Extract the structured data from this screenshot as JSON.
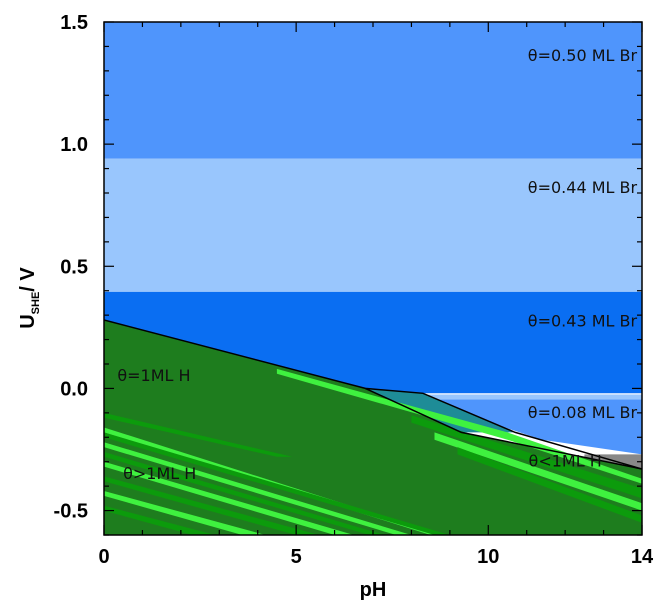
{
  "chart_data": {
    "type": "area",
    "title": "",
    "xlabel": "pH",
    "ylabel_main": "U",
    "ylabel_sub": "SHE",
    "ylabel_rest": "/ V",
    "xlim": [
      0,
      14
    ],
    "ylim": [
      -0.6,
      1.5
    ],
    "x_ticks": [
      0,
      5,
      10,
      14
    ],
    "y_ticks": [
      1.5,
      1.0,
      0.5,
      0.0,
      -0.5
    ],
    "x_ticks_labels": [
      "0",
      "5",
      "10",
      "14"
    ],
    "y_ticks_labels": [
      "1.5",
      "1.0",
      "0.5",
      "0.0",
      "-0.5"
    ],
    "grid": false,
    "regions": [
      {
        "label": "θ=0.50 ML Br",
        "color": "#4f95fc",
        "polygon": [
          [
            0,
            0.94
          ],
          [
            14,
            0.94
          ],
          [
            14,
            1.5
          ],
          [
            0,
            1.5
          ]
        ],
        "label_at": [
          12.45,
          1.36
        ]
      },
      {
        "label": "θ=0.44 ML Br",
        "color": "#99c6fd",
        "polygon": [
          [
            0,
            0.395
          ],
          [
            14,
            0.395
          ],
          [
            14,
            0.94
          ],
          [
            0,
            0.94
          ]
        ],
        "label_at": [
          12.45,
          0.82
        ]
      },
      {
        "label": "θ=0.43 ML Br",
        "color": "#0a6ef2",
        "polygon": [
          [
            0,
            -0.02
          ],
          [
            14,
            -0.02
          ],
          [
            14,
            0.395
          ],
          [
            0,
            0.395
          ]
        ],
        "label_at": [
          12.45,
          0.275
        ]
      },
      {
        "label": "θ=0.08 ML Br",
        "color": "#4f95fc",
        "polygon": [
          [
            8.2,
            -0.045
          ],
          [
            14,
            -0.045
          ],
          [
            14,
            -0.27
          ],
          [
            11.4,
            -0.21
          ]
        ],
        "label_at": [
          12.45,
          -0.1
        ]
      },
      {
        "label": "",
        "color": "#99c6fd",
        "polygon": [
          [
            8.2,
            -0.025
          ],
          [
            14,
            -0.025
          ],
          [
            14,
            -0.045
          ],
          [
            8.2,
            -0.045
          ]
        ],
        "label_at": null
      },
      {
        "label": "",
        "color": "#888888",
        "polygon": [
          [
            12.5,
            -0.27
          ],
          [
            14,
            -0.27
          ],
          [
            14,
            -0.33
          ],
          [
            12.5,
            -0.3
          ]
        ],
        "label_at": null
      },
      {
        "label": "",
        "color": "#1e8c97",
        "polygon": [
          [
            6.8,
            0.0
          ],
          [
            8.3,
            -0.02
          ],
          [
            10.7,
            -0.18
          ],
          [
            9.3,
            -0.18
          ]
        ],
        "label_at": null
      },
      {
        "label": "θ=1ML H",
        "color": "#1e7d1e",
        "polygon": [
          [
            0,
            0.28
          ],
          [
            6.8,
            0.0
          ],
          [
            9.3,
            -0.18
          ],
          [
            14,
            -0.33
          ],
          [
            14,
            -0.6
          ],
          [
            0,
            -0.6
          ]
        ],
        "label_at": [
          1.3,
          0.05
        ]
      },
      {
        "label": "θ>1ML H",
        "color": "#1e7d1e",
        "polygon": [],
        "label_at": [
          1.45,
          -0.35
        ]
      },
      {
        "label": "θ<1ML H",
        "color": "#1e7d1e",
        "polygon": [],
        "label_at": [
          12.0,
          -0.3
        ]
      }
    ],
    "stripes": [
      {
        "color": "#0c9b0c",
        "polygon": [
          [
            0,
            -0.12
          ],
          [
            4.5,
            -0.28
          ],
          [
            4.9,
            -0.28
          ],
          [
            0,
            -0.1
          ]
        ]
      },
      {
        "color": "#3ff13f",
        "polygon": [
          [
            0,
            -0.18
          ],
          [
            8.5,
            -0.6
          ],
          [
            8.8,
            -0.6
          ],
          [
            0,
            -0.16
          ]
        ]
      },
      {
        "color": "#0c9b0c",
        "polygon": [
          [
            0,
            -0.2
          ],
          [
            8.6,
            -0.6
          ],
          [
            9.0,
            -0.6
          ],
          [
            0,
            -0.18
          ]
        ]
      },
      {
        "color": "#3ff13f",
        "polygon": [
          [
            0,
            -0.24
          ],
          [
            7.6,
            -0.6
          ],
          [
            8.0,
            -0.6
          ],
          [
            0,
            -0.22
          ]
        ]
      },
      {
        "color": "#0c9b0c",
        "polygon": [
          [
            0,
            -0.28
          ],
          [
            6.9,
            -0.6
          ],
          [
            7.3,
            -0.6
          ],
          [
            0,
            -0.26
          ]
        ]
      },
      {
        "color": "#3ff13f",
        "polygon": [
          [
            0,
            -0.32
          ],
          [
            6.0,
            -0.6
          ],
          [
            6.5,
            -0.6
          ],
          [
            0,
            -0.3
          ]
        ]
      },
      {
        "color": "#0c9b0c",
        "polygon": [
          [
            0,
            -0.38
          ],
          [
            5.0,
            -0.6
          ],
          [
            5.6,
            -0.6
          ],
          [
            0,
            -0.36
          ]
        ]
      },
      {
        "color": "#3ff13f",
        "polygon": [
          [
            0,
            -0.44
          ],
          [
            3.6,
            -0.6
          ],
          [
            4.2,
            -0.6
          ],
          [
            0,
            -0.42
          ]
        ]
      },
      {
        "color": "#0c9b0c",
        "polygon": [
          [
            0,
            -0.5
          ],
          [
            2.3,
            -0.6
          ],
          [
            2.9,
            -0.6
          ],
          [
            0,
            -0.48
          ]
        ]
      },
      {
        "color": "#3ff13f",
        "polygon": [
          [
            4.5,
            0.08
          ],
          [
            10.5,
            -0.18
          ],
          [
            14,
            -0.37
          ],
          [
            14,
            -0.39
          ],
          [
            10.5,
            -0.21
          ],
          [
            4.5,
            0.06
          ]
        ]
      },
      {
        "color": "#0c9b0c",
        "polygon": [
          [
            8.0,
            -0.11
          ],
          [
            14,
            -0.41
          ],
          [
            14,
            -0.45
          ],
          [
            8.0,
            -0.14
          ]
        ]
      },
      {
        "color": "#3ff13f",
        "polygon": [
          [
            8.6,
            -0.18
          ],
          [
            14,
            -0.47
          ],
          [
            14,
            -0.5
          ],
          [
            8.6,
            -0.21
          ]
        ]
      },
      {
        "color": "#0c9b0c",
        "polygon": [
          [
            9.2,
            -0.24
          ],
          [
            14,
            -0.52
          ],
          [
            14,
            -0.55
          ],
          [
            9.2,
            -0.27
          ]
        ]
      }
    ],
    "boundaries": [
      [
        [
          0,
          0.28
        ],
        [
          6.8,
          0.0
        ],
        [
          8.3,
          -0.02
        ],
        [
          10.7,
          -0.18
        ],
        [
          14,
          -0.33
        ]
      ],
      [
        [
          6.8,
          0.0
        ],
        [
          9.3,
          -0.18
        ],
        [
          14,
          -0.33
        ]
      ]
    ]
  }
}
